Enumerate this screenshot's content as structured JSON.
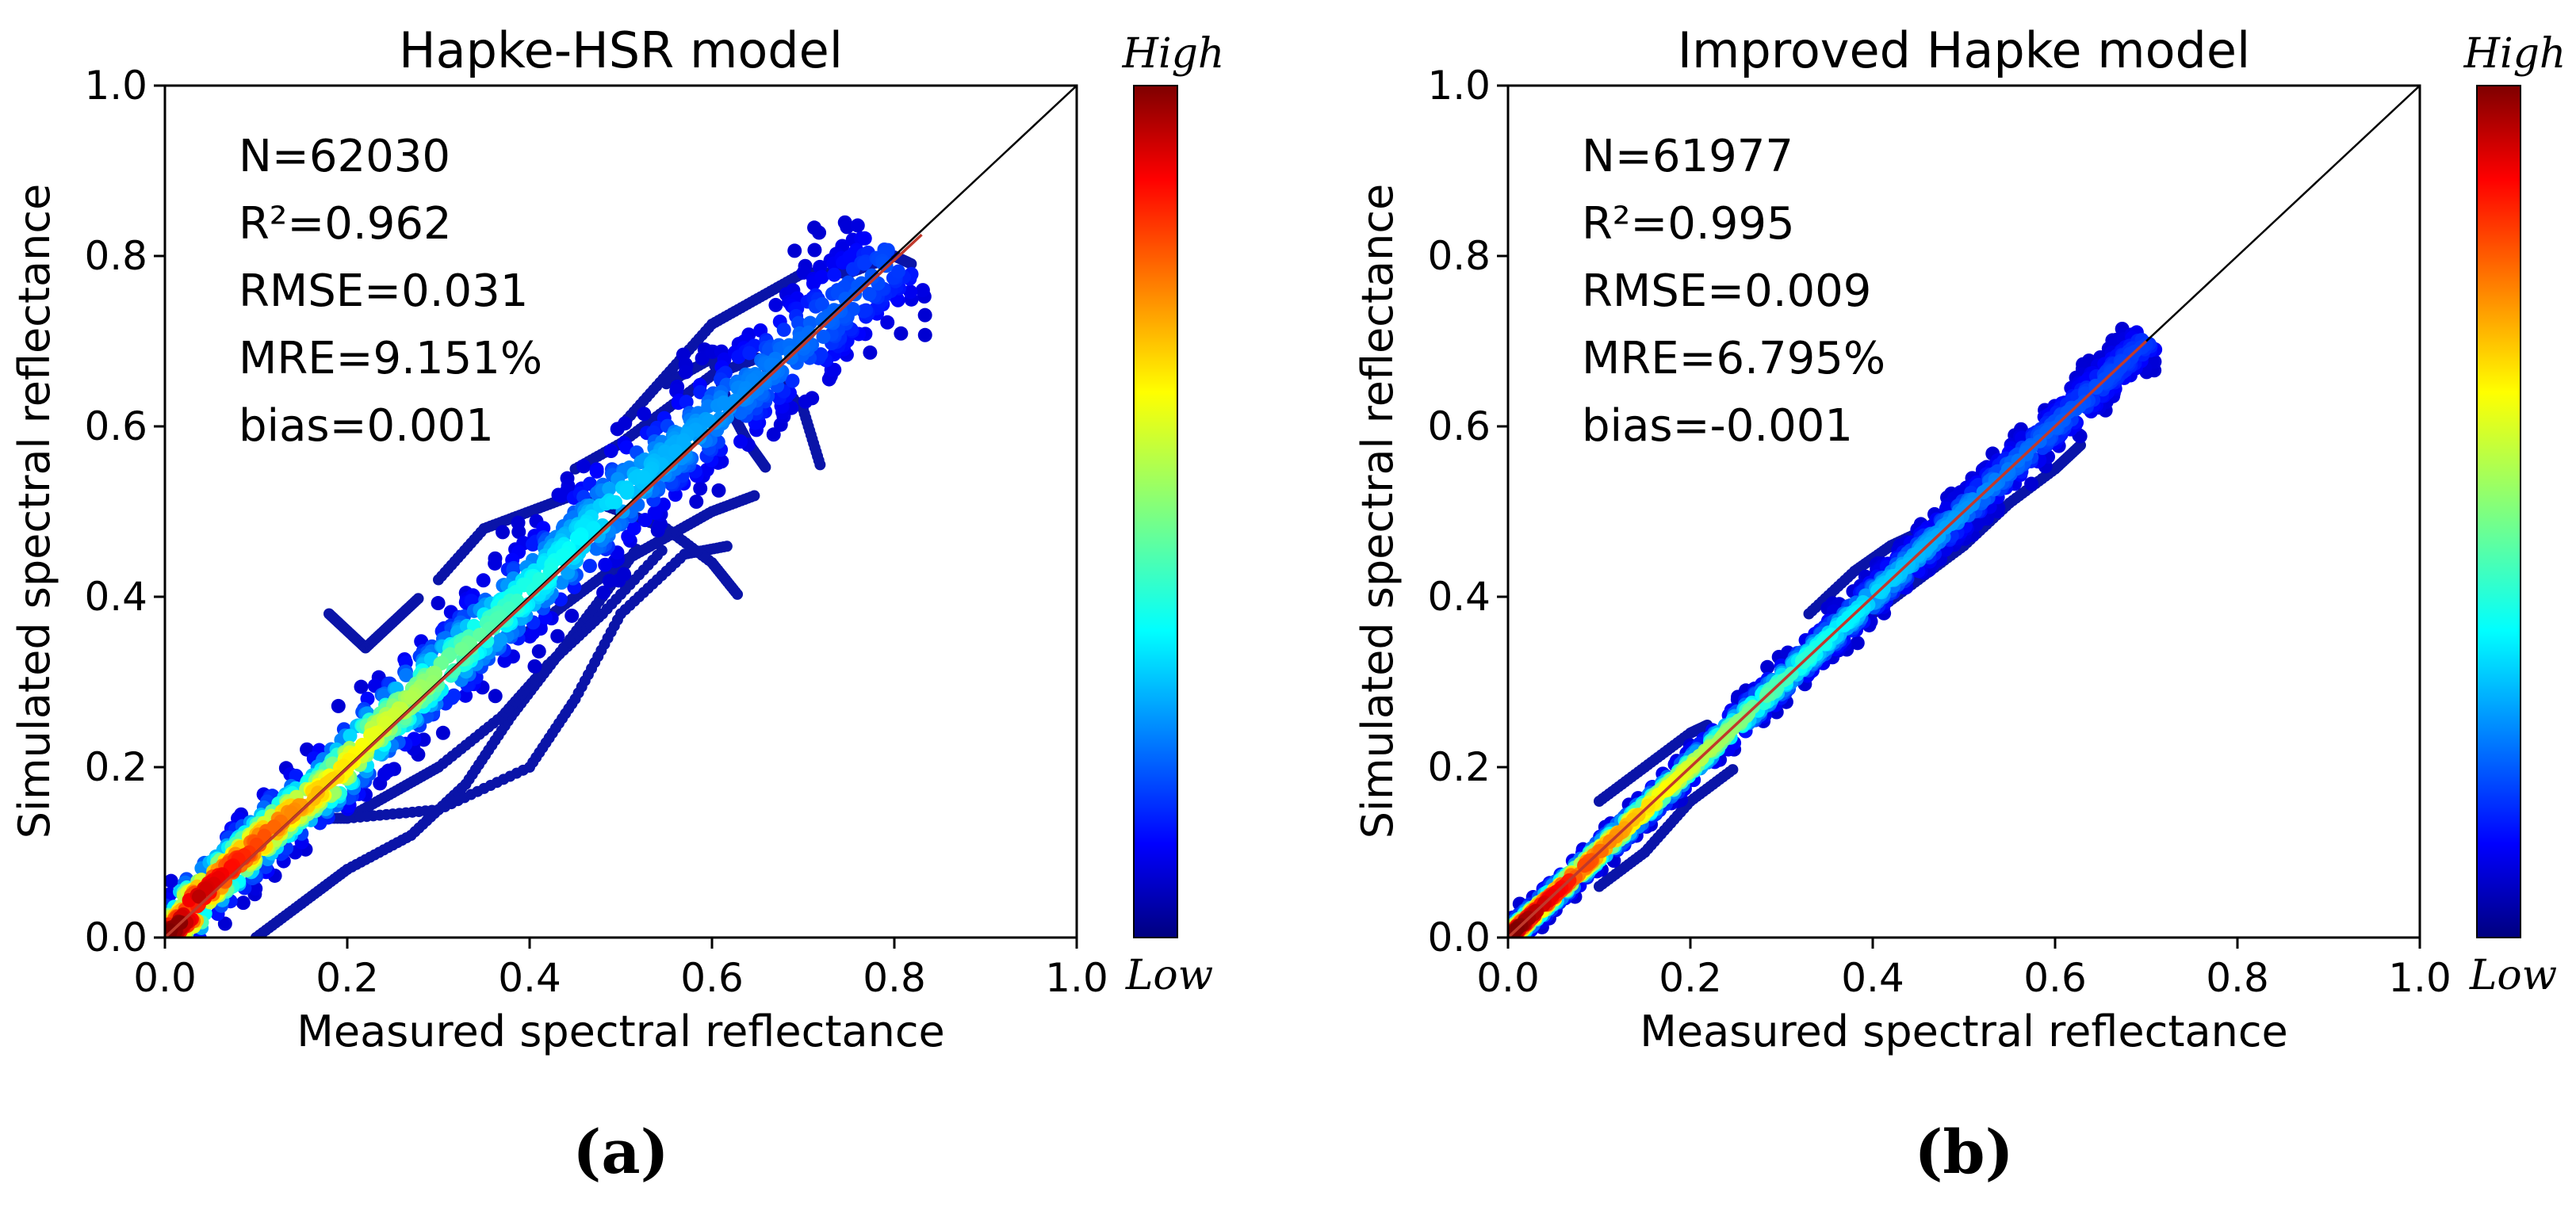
{
  "chart_data": [
    {
      "type": "scatter",
      "panel_label": "(a)",
      "panel_letter": "a",
      "title": "Hapke-HSR model",
      "xlabel": "Measured spectral reflectance",
      "ylabel": "Simulated spectral reflectance",
      "xlim": [
        0.0,
        1.0
      ],
      "ylim": [
        0.0,
        1.0
      ],
      "xticks": [
        "0.0",
        "0.2",
        "0.4",
        "0.6",
        "0.8",
        "1.0"
      ],
      "yticks": [
        "0.0",
        "0.2",
        "0.4",
        "0.6",
        "0.8",
        "1.0"
      ],
      "grid": false,
      "one_to_one_line": {
        "x": [
          0.0,
          1.0
        ],
        "y": [
          0.0,
          1.0
        ],
        "color": "#000000"
      },
      "fit_line": {
        "x": [
          0.0,
          0.83
        ],
        "y": [
          0.0,
          0.825
        ],
        "color": "#c0392b"
      },
      "stats": [
        "N=62030",
        "R²=0.962",
        "RMSE=0.031",
        "MRE=9.151%",
        "bias=0.001"
      ],
      "density_scatter": {
        "description_points": [
          {
            "x": 0.03,
            "y": 0.04
          },
          {
            "x": 0.08,
            "y": 0.09
          },
          {
            "x": 0.13,
            "y": 0.14
          },
          {
            "x": 0.18,
            "y": 0.18
          },
          {
            "x": 0.23,
            "y": 0.24
          },
          {
            "x": 0.28,
            "y": 0.29
          },
          {
            "x": 0.35,
            "y": 0.36
          },
          {
            "x": 0.42,
            "y": 0.43
          },
          {
            "x": 0.5,
            "y": 0.52
          },
          {
            "x": 0.6,
            "y": 0.61
          },
          {
            "x": 0.7,
            "y": 0.7
          },
          {
            "x": 0.8,
            "y": 0.8
          }
        ],
        "outlier_traces": [
          [
            [
              0.1,
              0.0
            ],
            [
              0.15,
              0.04
            ],
            [
              0.2,
              0.08
            ],
            [
              0.27,
              0.12
            ],
            [
              0.33,
              0.18
            ],
            [
              0.38,
              0.26
            ],
            [
              0.43,
              0.33
            ],
            [
              0.48,
              0.4
            ],
            [
              0.52,
              0.46
            ]
          ],
          [
            [
              0.2,
              0.14
            ],
            [
              0.25,
              0.17
            ],
            [
              0.3,
              0.2
            ],
            [
              0.37,
              0.26
            ],
            [
              0.42,
              0.32
            ],
            [
              0.48,
              0.38
            ],
            [
              0.55,
              0.46
            ]
          ],
          [
            [
              0.15,
              0.14
            ],
            [
              0.2,
              0.14
            ],
            [
              0.3,
              0.15
            ],
            [
              0.4,
              0.2
            ],
            [
              0.45,
              0.28
            ],
            [
              0.5,
              0.38
            ],
            [
              0.57,
              0.45
            ],
            [
              0.62,
              0.46
            ]
          ],
          [
            [
              0.3,
              0.42
            ],
            [
              0.35,
              0.48
            ],
            [
              0.4,
              0.5
            ],
            [
              0.45,
              0.52
            ],
            [
              0.5,
              0.5
            ],
            [
              0.55,
              0.48
            ],
            [
              0.6,
              0.44
            ],
            [
              0.63,
              0.4
            ]
          ],
          [
            [
              0.45,
              0.55
            ],
            [
              0.5,
              0.58
            ],
            [
              0.55,
              0.62
            ],
            [
              0.6,
              0.66
            ],
            [
              0.65,
              0.68
            ],
            [
              0.7,
              0.62
            ],
            [
              0.72,
              0.55
            ]
          ],
          [
            [
              0.5,
              0.6
            ],
            [
              0.55,
              0.66
            ],
            [
              0.6,
              0.72
            ],
            [
              0.65,
              0.75
            ],
            [
              0.7,
              0.78
            ],
            [
              0.75,
              0.78
            ],
            [
              0.8,
              0.8
            ],
            [
              0.82,
              0.79
            ]
          ],
          [
            [
              0.55,
              0.65
            ],
            [
              0.6,
              0.68
            ],
            [
              0.62,
              0.62
            ],
            [
              0.64,
              0.58
            ],
            [
              0.66,
              0.55
            ]
          ],
          [
            [
              0.4,
              0.36
            ],
            [
              0.45,
              0.4
            ],
            [
              0.5,
              0.44
            ],
            [
              0.55,
              0.47
            ],
            [
              0.6,
              0.5
            ],
            [
              0.65,
              0.52
            ]
          ],
          [
            [
              0.18,
              0.38
            ],
            [
              0.2,
              0.36
            ],
            [
              0.22,
              0.34
            ],
            [
              0.25,
              0.37
            ],
            [
              0.28,
              0.4
            ]
          ]
        ]
      },
      "colorbar": {
        "high_label": "High",
        "low_label": "Low",
        "colormap": "jet"
      }
    },
    {
      "type": "scatter",
      "panel_label": "(b)",
      "panel_letter": "b",
      "title": "Improved Hapke model",
      "xlabel": "Measured spectral reflectance",
      "ylabel": "Simulated spectral reflectance",
      "xlim": [
        0.0,
        1.0
      ],
      "ylim": [
        0.0,
        1.0
      ],
      "xticks": [
        "0.0",
        "0.2",
        "0.4",
        "0.6",
        "0.8",
        "1.0"
      ],
      "yticks": [
        "0.0",
        "0.2",
        "0.4",
        "0.6",
        "0.8",
        "1.0"
      ],
      "grid": false,
      "one_to_one_line": {
        "x": [
          0.0,
          1.0
        ],
        "y": [
          0.0,
          1.0
        ],
        "color": "#000000"
      },
      "fit_line": {
        "x": [
          0.0,
          0.7
        ],
        "y": [
          0.0,
          0.7
        ],
        "color": "#c0392b"
      },
      "stats": [
        "N=61977",
        "R²=0.995",
        "RMSE=0.009",
        "MRE=6.795%",
        "bias=-0.001"
      ],
      "density_scatter": {
        "description_points": [
          {
            "x": 0.02,
            "y": 0.02
          },
          {
            "x": 0.06,
            "y": 0.06
          },
          {
            "x": 0.1,
            "y": 0.1
          },
          {
            "x": 0.15,
            "y": 0.15
          },
          {
            "x": 0.2,
            "y": 0.2
          },
          {
            "x": 0.25,
            "y": 0.25
          },
          {
            "x": 0.3,
            "y": 0.3
          },
          {
            "x": 0.38,
            "y": 0.38
          },
          {
            "x": 0.45,
            "y": 0.45
          },
          {
            "x": 0.55,
            "y": 0.55
          },
          {
            "x": 0.63,
            "y": 0.63
          },
          {
            "x": 0.7,
            "y": 0.7
          }
        ],
        "outlier_traces": [
          [
            [
              0.33,
              0.38
            ],
            [
              0.38,
              0.43
            ],
            [
              0.42,
              0.46
            ],
            [
              0.46,
              0.48
            ],
            [
              0.5,
              0.52
            ],
            [
              0.55,
              0.56
            ],
            [
              0.6,
              0.59
            ]
          ],
          [
            [
              0.4,
              0.38
            ],
            [
              0.45,
              0.42
            ],
            [
              0.5,
              0.46
            ],
            [
              0.55,
              0.51
            ],
            [
              0.6,
              0.55
            ],
            [
              0.63,
              0.58
            ]
          ],
          [
            [
              0.1,
              0.16
            ],
            [
              0.15,
              0.2
            ],
            [
              0.2,
              0.24
            ],
            [
              0.22,
              0.25
            ]
          ],
          [
            [
              0.1,
              0.06
            ],
            [
              0.15,
              0.1
            ],
            [
              0.2,
              0.16
            ],
            [
              0.25,
              0.2
            ]
          ]
        ]
      },
      "colorbar": {
        "high_label": "High",
        "low_label": "Low",
        "colormap": "jet"
      }
    }
  ]
}
